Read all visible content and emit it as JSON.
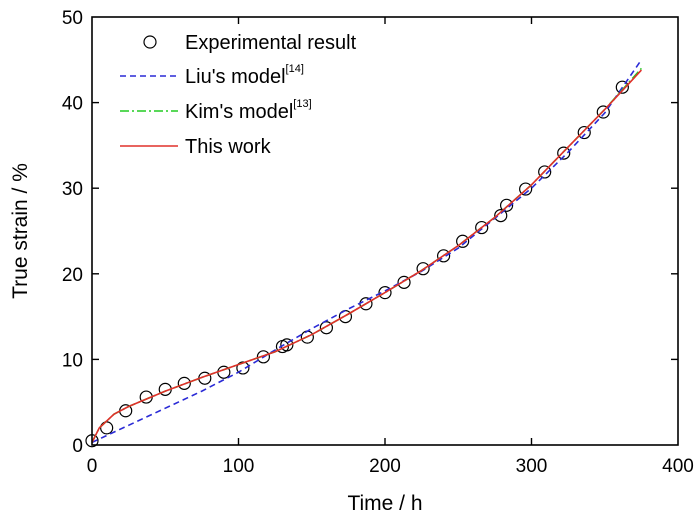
{
  "chart_data": {
    "type": "line",
    "xlabel": "Time / h",
    "ylabel": "True strain / %",
    "xlim": [
      0,
      400
    ],
    "ylim": [
      0,
      50
    ],
    "xticks": [
      "0",
      "100",
      "200",
      "300",
      "400"
    ],
    "yticks": [
      "0",
      "10",
      "20",
      "30",
      "40",
      "50"
    ],
    "grid": false,
    "legend_position": "top-left",
    "legend": [
      {
        "label": "Experimental result",
        "sup": ""
      },
      {
        "label": "Liu's model",
        "sup": "[14]"
      },
      {
        "label": "Kim's model",
        "sup": "[13]"
      },
      {
        "label": "This work",
        "sup": ""
      }
    ],
    "series": [
      {
        "name": "Experimental result",
        "style": "marker",
        "color": "#000000",
        "x": [
          0,
          10,
          23,
          37,
          50,
          63,
          77,
          90,
          103,
          117,
          130,
          133,
          147,
          160,
          173,
          187,
          200,
          213,
          226,
          240,
          253,
          266,
          279,
          283,
          296,
          309,
          322,
          336,
          349,
          362
        ],
        "y": [
          0.5,
          2.0,
          4.0,
          5.6,
          6.5,
          7.2,
          7.8,
          8.5,
          9.0,
          10.3,
          11.5,
          11.7,
          12.6,
          13.7,
          15.0,
          16.5,
          17.8,
          19.0,
          20.6,
          22.1,
          23.8,
          25.4,
          26.8,
          28.0,
          29.9,
          31.9,
          34.1,
          36.5,
          38.9,
          41.8
        ]
      },
      {
        "name": "Liu's model",
        "style": "dashed",
        "color": "#2a2ad6",
        "x": [
          0,
          25,
          50,
          75,
          100,
          125,
          150,
          175,
          200,
          225,
          250,
          275,
          300,
          325,
          350,
          375
        ],
        "y": [
          0.3,
          2.3,
          4.3,
          6.3,
          8.5,
          11.1,
          13.6,
          15.9,
          18.0,
          20.3,
          23.0,
          26.5,
          30.0,
          34.2,
          38.8,
          45.0
        ]
      },
      {
        "name": "Kim's model",
        "style": "dash-dot",
        "color": "#22cc22",
        "x": [
          0,
          5,
          15,
          25,
          50,
          75,
          100,
          125,
          150,
          175,
          200,
          225,
          250,
          275,
          300,
          325,
          350,
          375
        ],
        "y": [
          0.3,
          2.0,
          3.6,
          4.5,
          6.3,
          7.9,
          9.4,
          10.9,
          12.9,
          15.3,
          17.8,
          20.4,
          23.3,
          26.6,
          30.4,
          34.8,
          39.2,
          44.0
        ]
      },
      {
        "name": "This work",
        "style": "solid",
        "color": "#e0302a",
        "x": [
          0,
          5,
          15,
          25,
          50,
          75,
          100,
          125,
          150,
          175,
          200,
          225,
          250,
          275,
          300,
          325,
          350,
          375
        ],
        "y": [
          0.3,
          2.0,
          3.6,
          4.5,
          6.3,
          7.9,
          9.4,
          10.9,
          12.9,
          15.3,
          17.8,
          20.4,
          23.3,
          26.6,
          30.4,
          34.8,
          39.2,
          43.8
        ]
      }
    ]
  }
}
